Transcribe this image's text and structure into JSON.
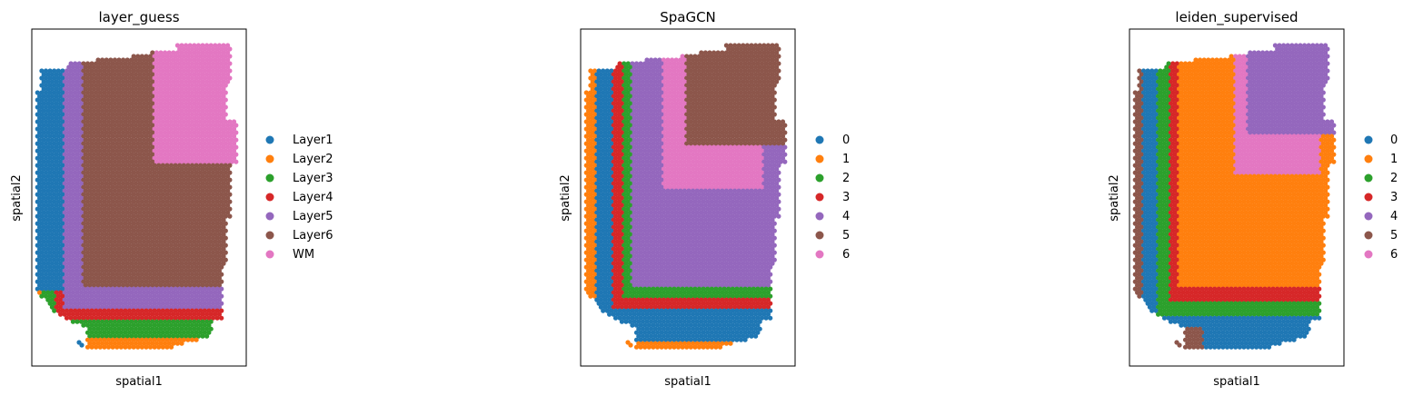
{
  "palette": [
    "#1f77b4",
    "#ff7f0e",
    "#2ca02c",
    "#d62728",
    "#9467bd",
    "#8c564b",
    "#e377c2"
  ],
  "chart_data": [
    {
      "type": "scatter",
      "title": "layer_guess",
      "xlabel": "spatial1",
      "ylabel": "spatial2",
      "legend_placement": "right",
      "grid": false,
      "ticks": false,
      "legend": [
        "Layer1",
        "Layer2",
        "Layer3",
        "Layer4",
        "Layer5",
        "Layer6",
        "WM"
      ],
      "colors": [
        "#1f77b4",
        "#ff7f0e",
        "#2ca02c",
        "#d62728",
        "#9467bd",
        "#8c564b",
        "#e377c2"
      ]
    },
    {
      "type": "scatter",
      "title": "SpaGCN",
      "xlabel": "spatial1",
      "ylabel": "spatial2",
      "legend_placement": "right",
      "grid": false,
      "ticks": false,
      "legend": [
        "0",
        "1",
        "2",
        "3",
        "4",
        "5",
        "6"
      ],
      "colors": [
        "#1f77b4",
        "#ff7f0e",
        "#2ca02c",
        "#d62728",
        "#9467bd",
        "#8c564b",
        "#e377c2"
      ]
    },
    {
      "type": "scatter",
      "title": "leiden_supervised",
      "xlabel": "spatial1",
      "ylabel": "spatial2",
      "legend_placement": "right",
      "grid": false,
      "ticks": false,
      "legend": [
        "0",
        "1",
        "2",
        "3",
        "4",
        "5",
        "6"
      ],
      "colors": [
        "#1f77b4",
        "#ff7f0e",
        "#2ca02c",
        "#d62728",
        "#9467bd",
        "#8c564b",
        "#e377c2"
      ]
    }
  ]
}
